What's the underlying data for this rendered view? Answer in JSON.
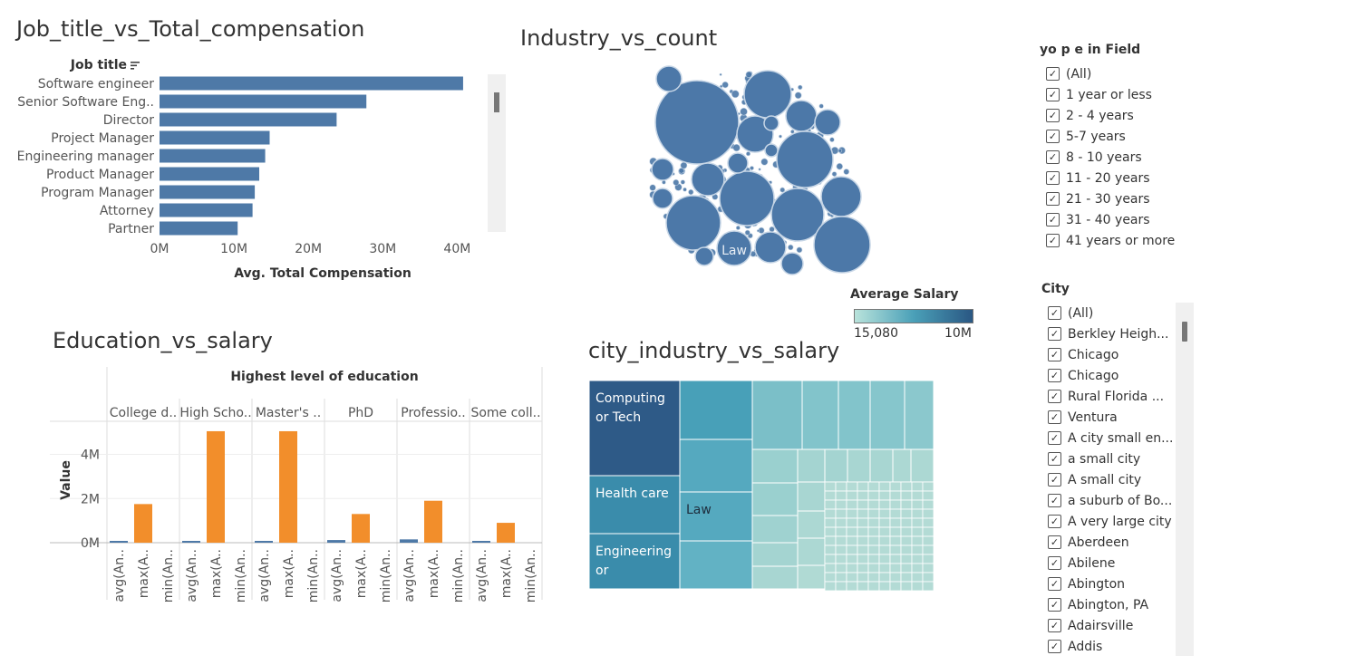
{
  "sheets": {
    "job_title": "Job_title_vs_Total_compensation",
    "industry": "Industry_vs_count",
    "education": "Education_vs_salary",
    "city_industry": "city_industry_vs_salary"
  },
  "colors": {
    "bar_blue": "#4e79a7",
    "bar_orange": "#f28e2b",
    "bubble_blue": "#4c78a8",
    "legend_low": "#b9e3db",
    "legend_high": "#2a5783"
  },
  "chart_data": [
    {
      "type": "bar",
      "orientation": "horizontal",
      "ylabel": "Job title",
      "xlabel": "Avg. Total Compensation",
      "categories": [
        "Software engineer",
        "Senior Software Eng..",
        "Director",
        "Project Manager",
        "Engineering manager",
        "Product Manager",
        "Program Manager",
        "Attorney",
        "Partner"
      ],
      "values": [
        40800000,
        27800000,
        23800000,
        14800000,
        14200000,
        13400000,
        12800000,
        12500000,
        10500000
      ],
      "xlim": [
        0,
        43000000
      ],
      "ticks": [
        "0M",
        "10M",
        "20M",
        "30M",
        "40M"
      ],
      "tick_values": [
        0,
        10000000,
        20000000,
        30000000,
        40000000
      ]
    },
    {
      "type": "scatter",
      "subtype": "packed-bubble",
      "labels": [
        "Law"
      ],
      "legend": {
        "title": "Average Salary",
        "min_label": "15,080",
        "max_label": "10M"
      }
    },
    {
      "type": "bar",
      "header": "Highest level of education",
      "ylabel": "Value",
      "categories": [
        "College d..",
        "High Scho..",
        "Master's ..",
        "PhD",
        "Professio..",
        "Some coll.."
      ],
      "measures": [
        "avg(An..",
        "max(A..",
        "min(An.."
      ],
      "series": [
        {
          "name": "avg",
          "values": [
            80000,
            70000,
            80000,
            120000,
            150000,
            70000
          ]
        },
        {
          "name": "max",
          "values": [
            1750000,
            5050000,
            5050000,
            1300000,
            1900000,
            900000
          ]
        },
        {
          "name": "min",
          "values": [
            0,
            0,
            0,
            0,
            0,
            0
          ]
        }
      ],
      "ylim": [
        0,
        5500000
      ],
      "ticks": [
        "0M",
        "2M",
        "4M"
      ],
      "tick_values": [
        0,
        2000000,
        4000000
      ]
    },
    {
      "type": "heatmap",
      "subtype": "treemap",
      "labels": [
        "Computing or Tech",
        "Health care",
        "Engineering or",
        "Law"
      ]
    }
  ],
  "filters": {
    "years_title": "yo p e in Field",
    "years": [
      "(All)",
      "1 year or less",
      "2 - 4 years",
      "5-7 years",
      "8 - 10 years",
      "11 - 20 years",
      "21 - 30 years",
      "31 - 40 years",
      "41 years or more"
    ],
    "city_title": "City",
    "cities": [
      "(All)",
      "Berkley Heigh...",
      "Chicago",
      "Chicago",
      "Rural Florida ...",
      "Ventura",
      "A city small en...",
      "a small city",
      "A small city",
      "a suburb of Bo...",
      "A very large city",
      "Aberdeen",
      "Abilene",
      "Abington",
      "Abington, PA",
      "Adairsville",
      "Addis"
    ],
    "check": "✓"
  }
}
